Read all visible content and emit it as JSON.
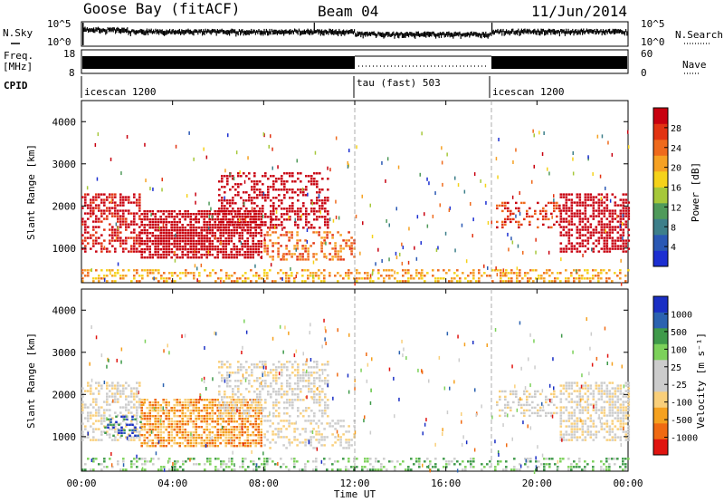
{
  "header": {
    "station": "Goose Bay (fitACF)",
    "beam": "Beam 04",
    "date": "11/Jun/2014"
  },
  "strip_labels": {
    "nsky": "N.Sky",
    "nsky_ticks": [
      "10^5",
      "10^0"
    ],
    "nsearch": "N.Search",
    "nsearch_ticks": [
      "10^5",
      "10^0"
    ],
    "freq_line1": "Freq.",
    "freq_line2": "[MHz]",
    "freq_ticks": [
      "18",
      "8"
    ],
    "nave": "Nave",
    "nave_ticks": [
      "60",
      "0"
    ],
    "cpid": "CPID",
    "cpid_segments": [
      "icescan 1200",
      "tau (fast) 503",
      "icescan 1200"
    ]
  },
  "chart_data": [
    {
      "type": "heatmap",
      "name": "power",
      "ylabel": "Slant Range [km]",
      "xlabel": "",
      "ylim": [
        180,
        4500
      ],
      "yticks": [
        1000,
        2000,
        3000,
        4000
      ],
      "xlim_hours": [
        0,
        24
      ],
      "colorbar_label": "Power [dB]",
      "colorbar_ticks": [
        "4",
        "8",
        "12",
        "16",
        "20",
        "24",
        "28"
      ],
      "colorbar_colors": [
        "#1c2fd1",
        "#2a58b4",
        "#3d7f8a",
        "#4f9a5a",
        "#a6c83a",
        "#f5d21a",
        "#f6a123",
        "#ef6a1c",
        "#e23312",
        "#c8000f"
      ],
      "regions": [
        {
          "t0": 0.0,
          "t1": 2.6,
          "r0": 900,
          "r1": 2300,
          "level": 9,
          "density": 0.55
        },
        {
          "t0": 2.6,
          "t1": 7.9,
          "r0": 800,
          "r1": 1900,
          "level": 16,
          "density": 0.75
        },
        {
          "t0": 3.2,
          "t1": 5.8,
          "r0": 950,
          "r1": 1450,
          "level": 26,
          "density": 0.6
        },
        {
          "t0": 6.0,
          "t1": 10.8,
          "r0": 1500,
          "r1": 2800,
          "level": 10,
          "density": 0.45
        },
        {
          "t0": 8.0,
          "t1": 12.0,
          "r0": 700,
          "r1": 1400,
          "level": 7,
          "density": 0.35
        },
        {
          "t0": 0.0,
          "t1": 24.0,
          "r0": 180,
          "r1": 500,
          "level": 6,
          "density": 0.4
        },
        {
          "t0": 18.2,
          "t1": 21.0,
          "r0": 1500,
          "r1": 2100,
          "level": 8,
          "density": 0.35
        },
        {
          "t0": 21.0,
          "t1": 24.0,
          "r0": 900,
          "r1": 2300,
          "level": 11,
          "density": 0.6
        }
      ]
    },
    {
      "type": "heatmap",
      "name": "velocity",
      "ylabel": "Slant Range [km]",
      "xlabel": "Time UT",
      "ylim": [
        180,
        4500
      ],
      "yticks": [
        1000,
        2000,
        3000,
        4000
      ],
      "xlim_hours": [
        0,
        24
      ],
      "xticks": [
        "00:00",
        "04:00",
        "08:00",
        "12:00",
        "16:00",
        "20:00",
        "00:00"
      ],
      "colorbar_label": "Velocity [m s⁻¹]",
      "colorbar_ticks": [
        "-1000",
        "-500",
        "-100",
        "-25",
        "25",
        "100",
        "500",
        "1000"
      ],
      "colorbar_colors": [
        "#e0140f",
        "#f06a12",
        "#f5a11f",
        "#f9cf7a",
        "#cccccc",
        "#cccccc",
        "#7cd15a",
        "#3f9a4a",
        "#2b62b0",
        "#1a2fc4"
      ],
      "regions": [
        {
          "t0": 0.0,
          "t1": 2.6,
          "r0": 900,
          "r1": 2300,
          "level": 4,
          "density": 0.5
        },
        {
          "t0": 1.0,
          "t1": 2.6,
          "r0": 1000,
          "r1": 1500,
          "level": 8,
          "density": 0.3
        },
        {
          "t0": 2.6,
          "t1": 7.9,
          "r0": 800,
          "r1": 1900,
          "level": 2,
          "density": 0.75
        },
        {
          "t0": 6.0,
          "t1": 10.8,
          "r0": 1500,
          "r1": 2800,
          "level": 4,
          "density": 0.45
        },
        {
          "t0": 8.0,
          "t1": 12.0,
          "r0": 700,
          "r1": 1400,
          "level": 4,
          "density": 0.35
        },
        {
          "t0": 0.0,
          "t1": 24.0,
          "r0": 180,
          "r1": 500,
          "level": 6,
          "density": 0.35
        },
        {
          "t0": 18.2,
          "t1": 21.0,
          "r0": 1500,
          "r1": 2100,
          "level": 4,
          "density": 0.4
        },
        {
          "t0": 21.0,
          "t1": 24.0,
          "r0": 900,
          "r1": 2300,
          "level": 4,
          "density": 0.6
        }
      ]
    }
  ]
}
